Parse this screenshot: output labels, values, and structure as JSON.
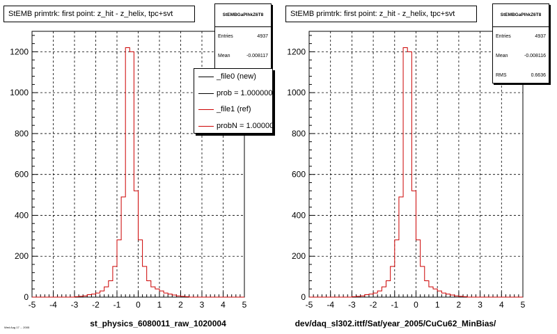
{
  "panels": [
    {
      "title": "StEMB primtrk: first point: z_hit - z_helix, tpc+svt",
      "x_title": "st_physics_6080011_raw_1020004",
      "stats": {
        "name": "StEMBGaPlhkZ6T8",
        "rows": [
          {
            "label": "Entries",
            "value": "4937"
          },
          {
            "label": "Mean",
            "value": "-0.008117"
          }
        ]
      },
      "legend": [
        {
          "label": "_file0 (new)",
          "color": "#000000"
        },
        {
          "label": "prob = 1.000000",
          "color": "#000000"
        },
        {
          "label": "_file1 (ref)",
          "color": "#cc0000"
        },
        {
          "label": "probN = 1.000000",
          "color": "#cc0000"
        }
      ]
    },
    {
      "title": "StEMB primtrk: first point: z_hit - z_helix, tpc+svt",
      "x_title": "dev/daq_sl302.ittf/Sat/year_2005/CuCu62_MinBias/",
      "stats": {
        "name": "StEMBGaPlhkZ6T8",
        "rows": [
          {
            "label": "Entries",
            "value": "4937"
          },
          {
            "label": "Mean",
            "value": "-0.008116"
          },
          {
            "label": "RMS",
            "value": "0.6636"
          }
        ]
      },
      "legend": []
    }
  ],
  "footer": "Wed Aug 17 ... 2005",
  "colors": {
    "hist": "#cc0000",
    "axis": "#000000"
  },
  "chart_data": {
    "type": "bar",
    "x_range": [
      -5,
      5
    ],
    "ylim": [
      0,
      1300
    ],
    "y_ticks": [
      0,
      200,
      400,
      600,
      800,
      1000,
      1200
    ],
    "x_ticks": [
      -5,
      -4,
      -3,
      -2,
      -1,
      0,
      1,
      2,
      3,
      4,
      5
    ],
    "grid": true,
    "bin_width": 0.2,
    "bin_low_edges": [
      -5.0,
      -4.8,
      -4.6,
      -4.4,
      -4.2,
      -4.0,
      -3.8,
      -3.6,
      -3.4,
      -3.2,
      -3.0,
      -2.8,
      -2.6,
      -2.4,
      -2.2,
      -2.0,
      -1.8,
      -1.6,
      -1.4,
      -1.2,
      -1.0,
      -0.8,
      -0.6,
      -0.4,
      -0.2,
      0.0,
      0.2,
      0.4,
      0.6,
      0.8,
      1.0,
      1.2,
      1.4,
      1.6,
      1.8,
      2.0,
      2.2,
      2.4,
      2.6,
      2.8,
      3.0,
      3.2,
      3.4,
      3.6,
      3.8,
      4.0,
      4.2,
      4.4,
      4.6,
      4.8
    ],
    "series": [
      {
        "values": [
          0,
          0,
          0,
          0,
          0,
          0,
          0,
          0,
          0,
          0,
          2,
          4,
          6,
          12,
          15,
          20,
          30,
          50,
          80,
          150,
          280,
          490,
          1220,
          1200,
          520,
          280,
          150,
          80,
          50,
          40,
          30,
          20,
          15,
          10,
          6,
          4,
          2,
          0,
          0,
          0,
          0,
          0,
          0,
          0,
          0,
          0,
          0,
          0,
          0,
          0
        ]
      }
    ]
  }
}
